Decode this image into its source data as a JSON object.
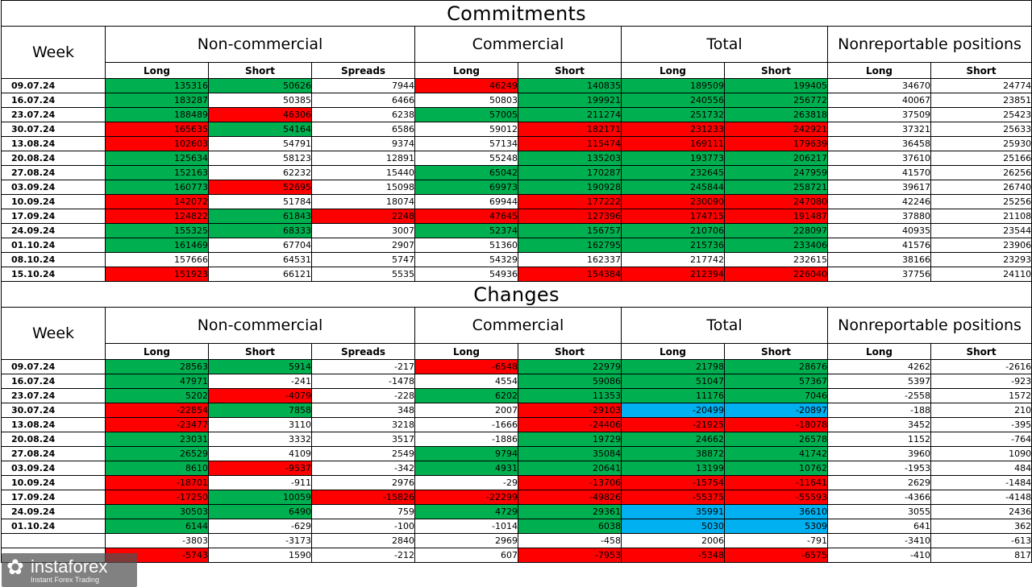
{
  "colors": {
    "green": "#00b050",
    "red": "#ff0000",
    "blue": "#00b0f0"
  },
  "headers": {
    "week": "Week",
    "noncommercial": "Non-commercial",
    "commercial": "Commercial",
    "total": "Total",
    "nonreportable": "Nonreportable positions",
    "long": "Long",
    "short": "Short",
    "spreads": "Spreads"
  },
  "sections": [
    {
      "title": "Commitments",
      "rows": [
        {
          "week": "09.07.24",
          "values": [
            "135316",
            "50626",
            "7944",
            "46249",
            "140835",
            "189509",
            "199405",
            "34670",
            "24774"
          ],
          "colors": [
            "g",
            "g",
            "",
            "r",
            "g",
            "g",
            "g",
            "",
            ""
          ]
        },
        {
          "week": "16.07.24",
          "values": [
            "183287",
            "50385",
            "6466",
            "50803",
            "199921",
            "240556",
            "256772",
            "40067",
            "23851"
          ],
          "colors": [
            "g",
            "",
            "",
            "",
            "g",
            "g",
            "g",
            "",
            ""
          ]
        },
        {
          "week": "23.07.24",
          "values": [
            "188489",
            "46306",
            "6238",
            "57005",
            "211274",
            "251732",
            "263818",
            "37509",
            "25423"
          ],
          "colors": [
            "g",
            "r",
            "",
            "g",
            "g",
            "g",
            "g",
            "",
            ""
          ]
        },
        {
          "week": "30.07.24",
          "values": [
            "165635",
            "54164",
            "6586",
            "59012",
            "182171",
            "231233",
            "242921",
            "37321",
            "25633"
          ],
          "colors": [
            "r",
            "g",
            "",
            "",
            "r",
            "r",
            "r",
            "",
            ""
          ]
        },
        {
          "week": "13.08.24",
          "values": [
            "102603",
            "54791",
            "9374",
            "57134",
            "115474",
            "169111",
            "179639",
            "36458",
            "25930"
          ],
          "colors": [
            "r",
            "",
            "",
            "",
            "r",
            "r",
            "r",
            "",
            ""
          ]
        },
        {
          "week": "20.08.24",
          "values": [
            "125634",
            "58123",
            "12891",
            "55248",
            "135203",
            "193773",
            "206217",
            "37610",
            "25166"
          ],
          "colors": [
            "g",
            "",
            "",
            "",
            "g",
            "g",
            "g",
            "",
            ""
          ]
        },
        {
          "week": "27.08.24",
          "values": [
            "152163",
            "62232",
            "15440",
            "65042",
            "170287",
            "232645",
            "247959",
            "41570",
            "26256"
          ],
          "colors": [
            "g",
            "",
            "",
            "g",
            "g",
            "g",
            "g",
            "",
            ""
          ]
        },
        {
          "week": "03.09.24",
          "values": [
            "160773",
            "52695",
            "15098",
            "69973",
            "190928",
            "245844",
            "258721",
            "39617",
            "26740"
          ],
          "colors": [
            "g",
            "r",
            "",
            "g",
            "g",
            "g",
            "g",
            "",
            ""
          ]
        },
        {
          "week": "10.09.24",
          "values": [
            "142072",
            "51784",
            "18074",
            "69944",
            "177222",
            "230090",
            "247080",
            "42246",
            "25256"
          ],
          "colors": [
            "r",
            "",
            "",
            "",
            "r",
            "r",
            "r",
            "",
            ""
          ]
        },
        {
          "week": "17.09.24",
          "values": [
            "124822",
            "61843",
            "2248",
            "47645",
            "127396",
            "174715",
            "191487",
            "37880",
            "21108"
          ],
          "colors": [
            "r",
            "g",
            "r",
            "r",
            "r",
            "r",
            "r",
            "",
            ""
          ]
        },
        {
          "week": "24.09.24",
          "values": [
            "155325",
            "68333",
            "3007",
            "52374",
            "156757",
            "210706",
            "228097",
            "40935",
            "23544"
          ],
          "colors": [
            "g",
            "g",
            "",
            "g",
            "g",
            "g",
            "g",
            "",
            ""
          ]
        },
        {
          "week": "01.10.24",
          "values": [
            "161469",
            "67704",
            "2907",
            "51360",
            "162795",
            "215736",
            "233406",
            "41576",
            "23906"
          ],
          "colors": [
            "g",
            "",
            "",
            "",
            "g",
            "g",
            "g",
            "",
            ""
          ]
        },
        {
          "week": "08.10.24",
          "values": [
            "157666",
            "64531",
            "5747",
            "54329",
            "162337",
            "217742",
            "232615",
            "38166",
            "23293"
          ],
          "colors": [
            "",
            "",
            "",
            "",
            "",
            "",
            "",
            "",
            ""
          ]
        },
        {
          "week": "15.10.24",
          "values": [
            "151923",
            "66121",
            "5535",
            "54936",
            "154384",
            "212394",
            "226040",
            "37756",
            "24110"
          ],
          "colors": [
            "r",
            "",
            "",
            "",
            "r",
            "r",
            "r",
            "",
            ""
          ]
        }
      ]
    },
    {
      "title": "Changes",
      "rows": [
        {
          "week": "09.07.24",
          "values": [
            "28563",
            "5914",
            "-217",
            "-6548",
            "22979",
            "21798",
            "28676",
            "4262",
            "-2616"
          ],
          "colors": [
            "g",
            "g",
            "",
            "r",
            "g",
            "g",
            "g",
            "",
            ""
          ]
        },
        {
          "week": "16.07.24",
          "values": [
            "47971",
            "-241",
            "-1478",
            "4554",
            "59086",
            "51047",
            "57367",
            "5397",
            "-923"
          ],
          "colors": [
            "g",
            "",
            "",
            "",
            "g",
            "g",
            "g",
            "",
            ""
          ]
        },
        {
          "week": "23.07.24",
          "values": [
            "5202",
            "-4079",
            "-228",
            "6202",
            "11353",
            "11176",
            "7046",
            "-2558",
            "1572"
          ],
          "colors": [
            "g",
            "r",
            "",
            "g",
            "g",
            "g",
            "g",
            "",
            ""
          ]
        },
        {
          "week": "30.07.24",
          "values": [
            "-22854",
            "7858",
            "348",
            "2007",
            "-29103",
            "-20499",
            "-20897",
            "-188",
            "210"
          ],
          "colors": [
            "r",
            "g",
            "",
            "",
            "r",
            "b",
            "b",
            "",
            ""
          ]
        },
        {
          "week": "13.08.24",
          "values": [
            "-23477",
            "3110",
            "3218",
            "-1666",
            "-24406",
            "-21925",
            "-18078",
            "3452",
            "-395"
          ],
          "colors": [
            "r",
            "",
            "",
            "",
            "r",
            "r",
            "r",
            "",
            ""
          ]
        },
        {
          "week": "20.08.24",
          "values": [
            "23031",
            "3332",
            "3517",
            "-1886",
            "19729",
            "24662",
            "26578",
            "1152",
            "-764"
          ],
          "colors": [
            "g",
            "",
            "",
            "",
            "g",
            "g",
            "g",
            "",
            ""
          ]
        },
        {
          "week": "27.08.24",
          "values": [
            "26529",
            "4109",
            "2549",
            "9794",
            "35084",
            "38872",
            "41742",
            "3960",
            "1090"
          ],
          "colors": [
            "g",
            "",
            "",
            "g",
            "g",
            "g",
            "g",
            "",
            ""
          ]
        },
        {
          "week": "03.09.24",
          "values": [
            "8610",
            "-9537",
            "-342",
            "4931",
            "20641",
            "13199",
            "10762",
            "-1953",
            "484"
          ],
          "colors": [
            "g",
            "r",
            "",
            "g",
            "g",
            "g",
            "g",
            "",
            ""
          ]
        },
        {
          "week": "10.09.24",
          "values": [
            "-18701",
            "-911",
            "2976",
            "-29",
            "-13706",
            "-15754",
            "-11641",
            "2629",
            "-1484"
          ],
          "colors": [
            "r",
            "",
            "",
            "",
            "r",
            "r",
            "r",
            "",
            ""
          ]
        },
        {
          "week": "17.09.24",
          "values": [
            "-17250",
            "10059",
            "-15826",
            "-22299",
            "-49826",
            "-55375",
            "-55593",
            "-4366",
            "-4148"
          ],
          "colors": [
            "r",
            "g",
            "r",
            "r",
            "r",
            "r",
            "r",
            "",
            ""
          ]
        },
        {
          "week": "24.09.24",
          "values": [
            "30503",
            "6490",
            "759",
            "4729",
            "29361",
            "35991",
            "36610",
            "3055",
            "2436"
          ],
          "colors": [
            "g",
            "g",
            "",
            "g",
            "g",
            "b",
            "b",
            "",
            ""
          ]
        },
        {
          "week": "01.10.24",
          "values": [
            "6144",
            "-629",
            "-100",
            "-1014",
            "6038",
            "5030",
            "5309",
            "641",
            "362"
          ],
          "colors": [
            "g",
            "",
            "",
            "",
            "g",
            "b",
            "b",
            "",
            ""
          ]
        },
        {
          "week": "",
          "values": [
            "-3803",
            "-3173",
            "2840",
            "2969",
            "-458",
            "2006",
            "-791",
            "-3410",
            "-613"
          ],
          "colors": [
            "",
            "",
            "",
            "",
            "",
            "",
            "",
            "",
            ""
          ]
        },
        {
          "week": "",
          "values": [
            "-5743",
            "1590",
            "-212",
            "607",
            "-7953",
            "-5348",
            "-6575",
            "-410",
            "817"
          ],
          "colors": [
            "r",
            "",
            "",
            "",
            "r",
            "r",
            "r",
            "",
            ""
          ]
        }
      ]
    }
  ],
  "logo": {
    "name": "instaforex",
    "tagline": "Instant Forex Trading",
    "icon": "instaforex-logo-icon"
  }
}
